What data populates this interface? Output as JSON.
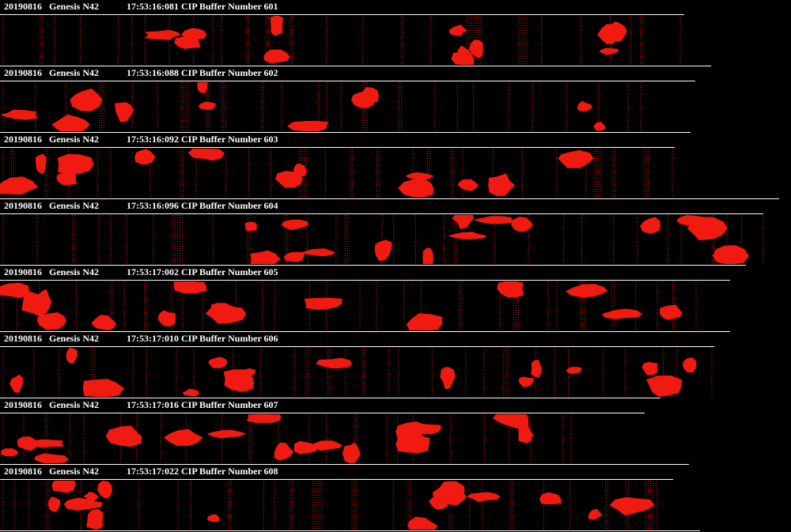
{
  "buffers": [
    {
      "date": "20190816",
      "probe": "Genesis N42",
      "time": "17:53:16:081",
      "label": "CIP Buffer Number 601"
    },
    {
      "date": "20190816",
      "probe": "Genesis N42",
      "time": "17:53:16:088",
      "label": "CIP Buffer Number 602"
    },
    {
      "date": "20190816",
      "probe": "Genesis N42",
      "time": "17:53:16:092",
      "label": "CIP Buffer Number 603"
    },
    {
      "date": "20190816",
      "probe": "Genesis N42",
      "time": "17:53:16:096",
      "label": "CIP Buffer Number 604"
    },
    {
      "date": "20190816",
      "probe": "Genesis N42",
      "time": "17:53:17:002",
      "label": "CIP Buffer Number 605"
    },
    {
      "date": "20190816",
      "probe": "Genesis N42",
      "time": "17:53:17:010",
      "label": "CIP Buffer Number 606"
    },
    {
      "date": "20190816",
      "probe": "Genesis N42",
      "time": "17:53:17:016",
      "label": "CIP Buffer Number 607"
    },
    {
      "date": "20190816",
      "probe": "Genesis N42",
      "time": "17:53:17:022",
      "label": "CIP Buffer Number 608"
    }
  ]
}
